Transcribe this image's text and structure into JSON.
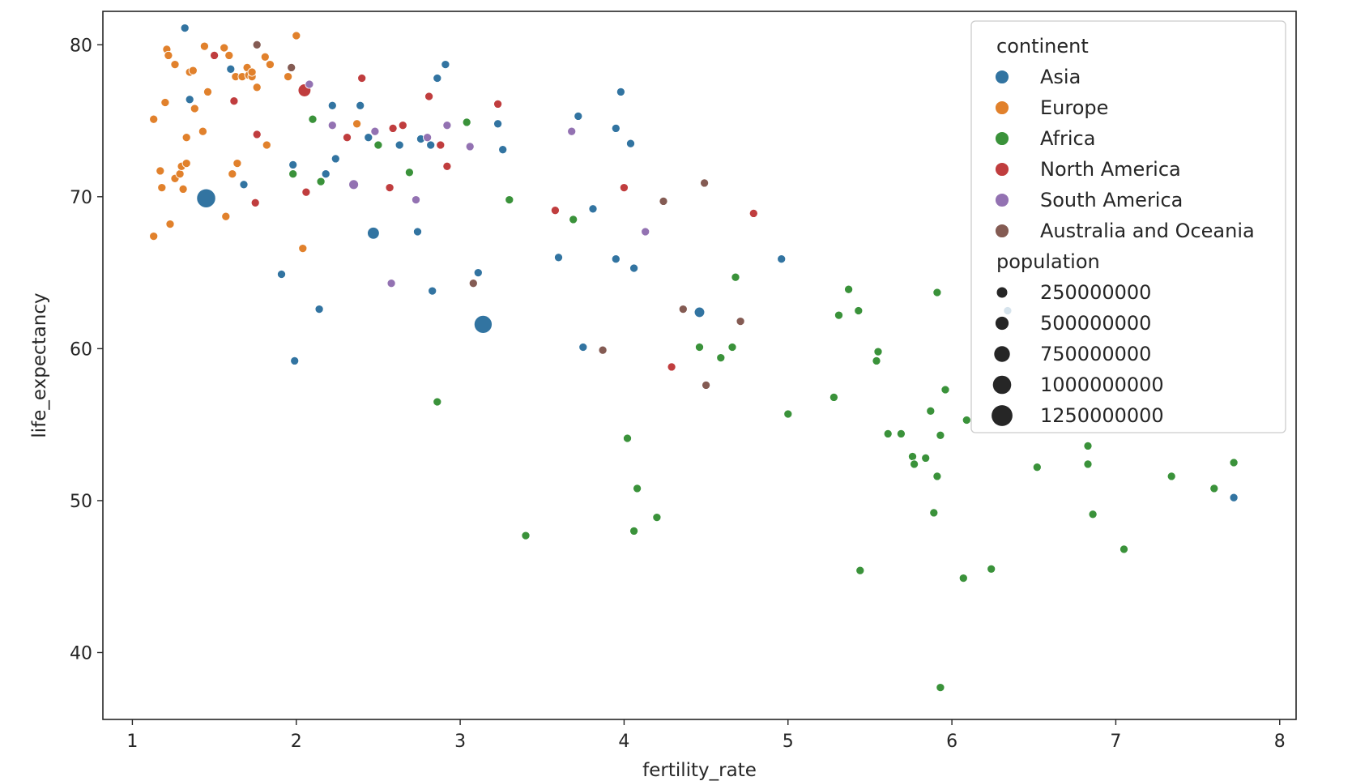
{
  "chart_data": {
    "type": "scatter",
    "xlabel": "fertility_rate",
    "ylabel": "life_expectancy",
    "xlim": [
      0.82,
      8.1
    ],
    "ylim": [
      35.6,
      82.2
    ],
    "xticks": [
      1,
      2,
      3,
      4,
      5,
      6,
      7,
      8
    ],
    "yticks": [
      40,
      50,
      60,
      70,
      80
    ],
    "grid": false,
    "legend_position": "top-right",
    "hue_title": "continent",
    "size_title": "population",
    "size_legend": [
      {
        "label": "250000000",
        "value": 250000000
      },
      {
        "label": "500000000",
        "value": 500000000
      },
      {
        "label": "750000000",
        "value": 750000000
      },
      {
        "label": "1000000000",
        "value": 1000000000
      },
      {
        "label": "1250000000",
        "value": 1250000000
      }
    ],
    "series": [
      {
        "name": "Asia",
        "color": "#3274a1",
        "points": [
          [
            1.32,
            81.1,
            20000000
          ],
          [
            1.35,
            76.4,
            20000000
          ],
          [
            1.6,
            78.4,
            20000000
          ],
          [
            1.68,
            70.8,
            20000000
          ],
          [
            1.45,
            69.9,
            1380000000
          ],
          [
            1.91,
            64.9,
            20000000
          ],
          [
            1.98,
            72.1,
            20000000
          ],
          [
            1.99,
            59.2,
            20000000
          ],
          [
            2.14,
            62.6,
            20000000
          ],
          [
            2.18,
            71.5,
            20000000
          ],
          [
            2.22,
            76.0,
            20000000
          ],
          [
            2.24,
            72.5,
            20000000
          ],
          [
            2.39,
            76.0,
            20000000
          ],
          [
            2.44,
            73.9,
            20000000
          ],
          [
            2.47,
            67.6,
            250000000
          ],
          [
            2.63,
            73.4,
            20000000
          ],
          [
            2.74,
            67.7,
            20000000
          ],
          [
            2.76,
            73.8,
            20000000
          ],
          [
            2.82,
            73.4,
            20000000
          ],
          [
            2.83,
            63.8,
            20000000
          ],
          [
            2.86,
            77.8,
            20000000
          ],
          [
            2.91,
            78.7,
            20000000
          ],
          [
            3.11,
            65.0,
            20000000
          ],
          [
            3.14,
            61.6,
            1150000000
          ],
          [
            3.23,
            74.8,
            20000000
          ],
          [
            3.26,
            73.1,
            20000000
          ],
          [
            3.6,
            66.0,
            20000000
          ],
          [
            3.72,
            75.3,
            20000000
          ],
          [
            3.75,
            60.1,
            20000000
          ],
          [
            3.81,
            69.2,
            20000000
          ],
          [
            3.95,
            74.5,
            20000000
          ],
          [
            3.95,
            65.9,
            20000000
          ],
          [
            3.98,
            76.9,
            20000000
          ],
          [
            4.04,
            73.5,
            20000000
          ],
          [
            4.06,
            65.3,
            20000000
          ],
          [
            4.46,
            62.4,
            120000000
          ],
          [
            4.96,
            65.9,
            20000000
          ],
          [
            6.34,
            62.5,
            20000000
          ],
          [
            7.72,
            50.2,
            20000000
          ]
        ]
      },
      {
        "name": "Europe",
        "color": "#e1812c",
        "points": [
          [
            1.13,
            75.1,
            20000000
          ],
          [
            1.13,
            67.4,
            20000000
          ],
          [
            1.17,
            71.7,
            20000000
          ],
          [
            1.18,
            70.6,
            20000000
          ],
          [
            1.2,
            76.2,
            20000000
          ],
          [
            1.21,
            79.7,
            20000000
          ],
          [
            1.22,
            79.3,
            20000000
          ],
          [
            1.23,
            68.2,
            20000000
          ],
          [
            1.26,
            78.7,
            20000000
          ],
          [
            1.26,
            71.2,
            20000000
          ],
          [
            1.29,
            71.5,
            20000000
          ],
          [
            1.3,
            72.0,
            20000000
          ],
          [
            1.31,
            70.5,
            20000000
          ],
          [
            1.33,
            72.2,
            20000000
          ],
          [
            1.33,
            73.9,
            20000000
          ],
          [
            1.35,
            78.2,
            20000000
          ],
          [
            1.37,
            78.3,
            20000000
          ],
          [
            1.38,
            75.8,
            20000000
          ],
          [
            1.43,
            74.3,
            20000000
          ],
          [
            1.44,
            79.9,
            20000000
          ],
          [
            1.46,
            76.9,
            20000000
          ],
          [
            1.56,
            79.8,
            20000000
          ],
          [
            1.57,
            68.7,
            20000000
          ],
          [
            1.59,
            79.3,
            20000000
          ],
          [
            1.61,
            71.5,
            20000000
          ],
          [
            1.63,
            77.9,
            20000000
          ],
          [
            1.64,
            72.2,
            20000000
          ],
          [
            1.67,
            77.9,
            20000000
          ],
          [
            1.7,
            78.5,
            20000000
          ],
          [
            1.71,
            78.0,
            20000000
          ],
          [
            1.73,
            77.9,
            20000000
          ],
          [
            1.73,
            78.2,
            20000000
          ],
          [
            1.76,
            77.2,
            20000000
          ],
          [
            1.81,
            79.2,
            20000000
          ],
          [
            1.82,
            73.4,
            20000000
          ],
          [
            1.84,
            78.7,
            20000000
          ],
          [
            1.95,
            77.9,
            20000000
          ],
          [
            2.0,
            80.6,
            20000000
          ],
          [
            2.04,
            66.6,
            20000000
          ],
          [
            2.37,
            74.8,
            20000000
          ]
        ]
      },
      {
        "name": "Africa",
        "color": "#3a923a",
        "points": [
          [
            1.98,
            71.5,
            20000000
          ],
          [
            2.1,
            75.1,
            20000000
          ],
          [
            2.15,
            71.0,
            20000000
          ],
          [
            2.5,
            73.4,
            20000000
          ],
          [
            2.69,
            71.6,
            20000000
          ],
          [
            2.86,
            56.5,
            20000000
          ],
          [
            3.04,
            74.9,
            20000000
          ],
          [
            3.3,
            69.8,
            20000000
          ],
          [
            3.4,
            47.7,
            20000000
          ],
          [
            3.69,
            68.5,
            20000000
          ],
          [
            4.02,
            54.1,
            20000000
          ],
          [
            4.06,
            48.0,
            20000000
          ],
          [
            4.08,
            50.8,
            20000000
          ],
          [
            4.2,
            48.9,
            20000000
          ],
          [
            4.46,
            60.1,
            20000000
          ],
          [
            4.59,
            59.4,
            20000000
          ],
          [
            4.66,
            60.1,
            20000000
          ],
          [
            4.68,
            64.7,
            20000000
          ],
          [
            5.0,
            55.7,
            20000000
          ],
          [
            5.28,
            56.8,
            20000000
          ],
          [
            5.31,
            62.2,
            20000000
          ],
          [
            5.37,
            63.9,
            20000000
          ],
          [
            5.43,
            62.5,
            20000000
          ],
          [
            5.44,
            45.4,
            20000000
          ],
          [
            5.54,
            59.2,
            20000000
          ],
          [
            5.55,
            59.8,
            20000000
          ],
          [
            5.61,
            54.4,
            20000000
          ],
          [
            5.69,
            54.4,
            20000000
          ],
          [
            5.76,
            52.9,
            20000000
          ],
          [
            5.77,
            52.4,
            20000000
          ],
          [
            5.84,
            52.8,
            20000000
          ],
          [
            5.87,
            55.9,
            20000000
          ],
          [
            5.89,
            49.2,
            20000000
          ],
          [
            5.91,
            51.6,
            20000000
          ],
          [
            5.91,
            63.7,
            20000000
          ],
          [
            5.93,
            54.3,
            20000000
          ],
          [
            5.93,
            37.7,
            20000000
          ],
          [
            5.96,
            57.3,
            20000000
          ],
          [
            6.07,
            44.9,
            20000000
          ],
          [
            6.09,
            55.3,
            20000000
          ],
          [
            6.24,
            45.5,
            20000000
          ],
          [
            6.52,
            52.2,
            20000000
          ],
          [
            6.83,
            53.6,
            20000000
          ],
          [
            6.83,
            52.4,
            20000000
          ],
          [
            6.86,
            49.1,
            20000000
          ],
          [
            7.05,
            46.8,
            20000000
          ],
          [
            7.34,
            51.6,
            20000000
          ],
          [
            7.6,
            50.8,
            20000000
          ],
          [
            7.72,
            52.5,
            20000000
          ]
        ]
      },
      {
        "name": "North America",
        "color": "#c03d3e",
        "points": [
          [
            1.5,
            79.3,
            20000000
          ],
          [
            1.62,
            76.3,
            20000000
          ],
          [
            1.75,
            69.6,
            20000000
          ],
          [
            1.76,
            74.1,
            20000000
          ],
          [
            2.05,
            77.0,
            330000000
          ],
          [
            2.06,
            70.3,
            20000000
          ],
          [
            2.31,
            73.9,
            20000000
          ],
          [
            2.4,
            77.8,
            20000000
          ],
          [
            2.57,
            70.6,
            20000000
          ],
          [
            2.59,
            74.5,
            20000000
          ],
          [
            2.65,
            74.7,
            20000000
          ],
          [
            2.81,
            76.6,
            20000000
          ],
          [
            2.88,
            73.4,
            20000000
          ],
          [
            2.92,
            72.0,
            20000000
          ],
          [
            3.23,
            76.1,
            20000000
          ],
          [
            3.58,
            69.1,
            20000000
          ],
          [
            4.0,
            70.6,
            20000000
          ],
          [
            4.29,
            58.8,
            20000000
          ],
          [
            4.79,
            68.9,
            20000000
          ]
        ]
      },
      {
        "name": "South America",
        "color": "#9372b2",
        "points": [
          [
            2.08,
            77.4,
            20000000
          ],
          [
            2.22,
            74.7,
            20000000
          ],
          [
            2.35,
            70.8,
            80000000
          ],
          [
            2.48,
            74.3,
            20000000
          ],
          [
            2.58,
            64.3,
            20000000
          ],
          [
            2.73,
            69.8,
            20000000
          ],
          [
            2.8,
            73.9,
            20000000
          ],
          [
            2.92,
            74.7,
            20000000
          ],
          [
            3.06,
            73.3,
            20000000
          ],
          [
            3.68,
            74.3,
            20000000
          ],
          [
            4.13,
            67.7,
            20000000
          ]
        ]
      },
      {
        "name": "Australia and Oceania",
        "color": "#845b53",
        "points": [
          [
            1.76,
            80.0,
            20000000
          ],
          [
            1.97,
            78.5,
            20000000
          ],
          [
            3.08,
            64.3,
            20000000
          ],
          [
            3.87,
            59.9,
            20000000
          ],
          [
            4.24,
            69.7,
            20000000
          ],
          [
            4.36,
            62.6,
            20000000
          ],
          [
            4.49,
            70.9,
            20000000
          ],
          [
            4.5,
            57.6,
            20000000
          ],
          [
            4.71,
            61.8,
            20000000
          ]
        ]
      }
    ]
  }
}
